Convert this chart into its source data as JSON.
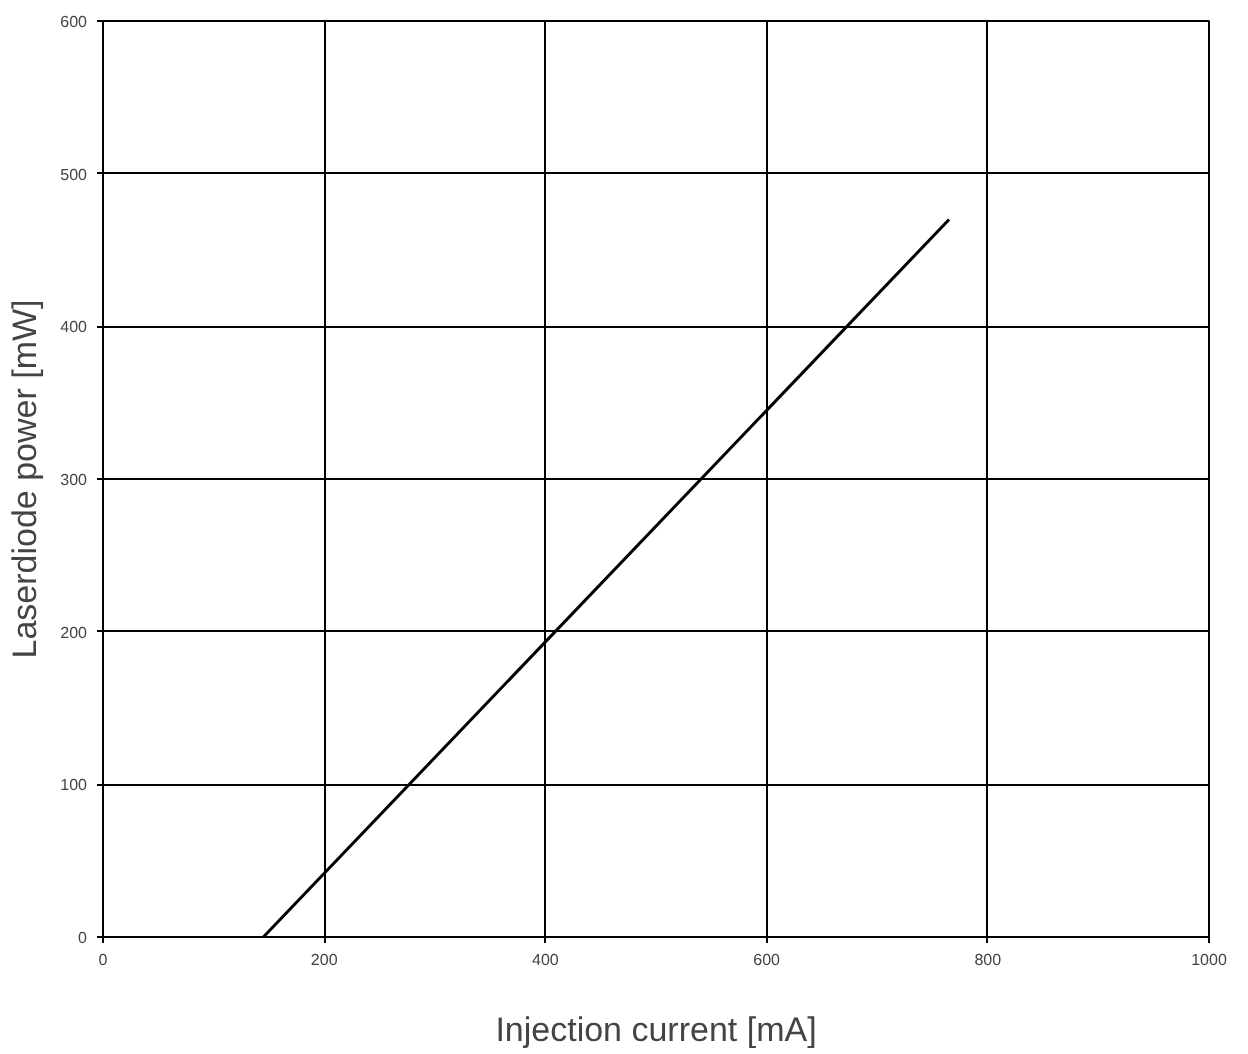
{
  "chart_data": {
    "type": "line",
    "xlabel": "Injection current [mA]",
    "ylabel": "Laserdiode power [mW]",
    "x": [
      145,
      765
    ],
    "series": [
      {
        "color": "#000000",
        "values": [
          0,
          470
        ]
      }
    ],
    "xlim": [
      0,
      1000
    ],
    "xticks": [
      0,
      200,
      400,
      600,
      800,
      1000
    ],
    "ylim": [
      0,
      600
    ],
    "yticks": [
      0,
      100,
      200,
      300,
      400,
      500,
      600
    ],
    "grid": true,
    "line_style": "solid"
  }
}
